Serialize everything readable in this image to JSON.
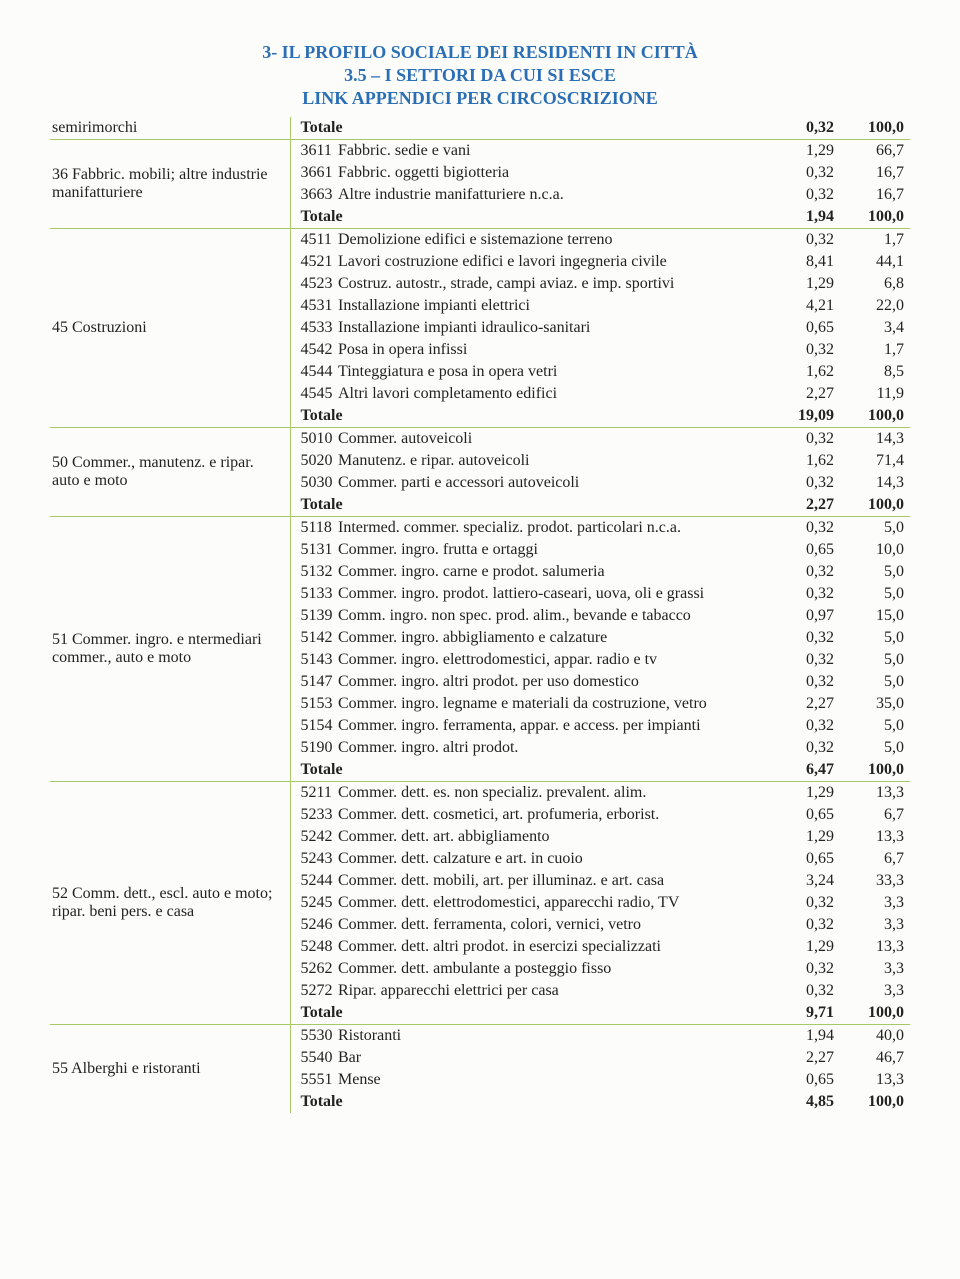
{
  "header": {
    "line1": "3- IL PROFILO SOCIALE DEI RESIDENTI IN CITTÀ",
    "line2": "3.5 – I SETTORI DA CUI SI ESCE",
    "line3": "LINK APPENDICI PER CIRCOSCRIZIONE"
  },
  "table": {
    "colors": {
      "border": "#a7c96a",
      "heading": "#2a6fb5"
    },
    "groups": [
      {
        "left": "semirimorchi",
        "rows": [
          {
            "type": "total",
            "label": "Totale",
            "v1": "0,32",
            "v2": "100,0"
          }
        ]
      },
      {
        "left": "36  Fabbric. mobili; altre industrie manifatturiere",
        "rows": [
          {
            "code": "3611",
            "desc": "Fabbric. sedie e vani",
            "v1": "1,29",
            "v2": "66,7"
          },
          {
            "code": "3661",
            "desc": "Fabbric. oggetti bigiotteria",
            "v1": "0,32",
            "v2": "16,7"
          },
          {
            "code": "3663",
            "desc": "Altre industrie manifatturiere n.c.a.",
            "v1": "0,32",
            "v2": "16,7"
          },
          {
            "type": "total",
            "label": "Totale",
            "v1": "1,94",
            "v2": "100,0"
          }
        ]
      },
      {
        "left": "45  Costruzioni",
        "rows": [
          {
            "code": "4511",
            "desc": "Demolizione edifici e sistemazione terreno",
            "v1": "0,32",
            "v2": "1,7"
          },
          {
            "code": "4521",
            "desc": "Lavori costruzione edifici e lavori ingegneria civile",
            "v1": "8,41",
            "v2": "44,1"
          },
          {
            "code": "4523",
            "desc": "Costruz. autostr., strade, campi aviaz. e imp. sportivi",
            "v1": "1,29",
            "v2": "6,8"
          },
          {
            "code": "4531",
            "desc": "Installazione impianti elettrici",
            "v1": "4,21",
            "v2": "22,0"
          },
          {
            "code": "4533",
            "desc": "Installazione impianti idraulico-sanitari",
            "v1": "0,65",
            "v2": "3,4"
          },
          {
            "code": "4542",
            "desc": "Posa in opera infissi",
            "v1": "0,32",
            "v2": "1,7"
          },
          {
            "code": "4544",
            "desc": "Tinteggiatura e posa in opera vetri",
            "v1": "1,62",
            "v2": "8,5"
          },
          {
            "code": "4545",
            "desc": "Altri lavori completamento edifici",
            "v1": "2,27",
            "v2": "11,9"
          },
          {
            "type": "total",
            "label": "Totale",
            "v1": "19,09",
            "v2": "100,0"
          }
        ]
      },
      {
        "left": "50  Commer., manutenz. e ripar. auto e moto",
        "rows": [
          {
            "code": "5010",
            "desc": "Commer. autoveicoli",
            "v1": "0,32",
            "v2": "14,3"
          },
          {
            "code": "5020",
            "desc": "Manutenz. e ripar. autoveicoli",
            "v1": "1,62",
            "v2": "71,4"
          },
          {
            "code": "5030",
            "desc": "Commer. parti e accessori autoveicoli",
            "v1": "0,32",
            "v2": "14,3"
          },
          {
            "type": "total",
            "label": "Totale",
            "v1": "2,27",
            "v2": "100,0"
          }
        ]
      },
      {
        "left": "51  Commer. ingro. e ntermediari commer., auto e moto",
        "rows": [
          {
            "code": "5118",
            "desc": "Intermed. commer. specializ. prodot. particolari n.c.a.",
            "v1": "0,32",
            "v2": "5,0"
          },
          {
            "code": "5131",
            "desc": "Commer. ingro. frutta e ortaggi",
            "v1": "0,65",
            "v2": "10,0"
          },
          {
            "code": "5132",
            "desc": "Commer. ingro. carne e prodot. salumeria",
            "v1": "0,32",
            "v2": "5,0"
          },
          {
            "code": "5133",
            "desc": "Commer. ingro. prodot. lattiero-caseari, uova, oli e grassi",
            "v1": "0,32",
            "v2": "5,0"
          },
          {
            "code": "5139",
            "desc": "Comm. ingro. non spec. prod. alim., bevande e tabacco",
            "v1": "0,97",
            "v2": "15,0"
          },
          {
            "code": "5142",
            "desc": "Commer. ingro. abbigliamento e calzature",
            "v1": "0,32",
            "v2": "5,0"
          },
          {
            "code": "5143",
            "desc": "Commer. ingro. elettrodomestici, appar. radio e tv",
            "v1": "0,32",
            "v2": "5,0"
          },
          {
            "code": "5147",
            "desc": "Commer. ingro. altri prodot. per uso domestico",
            "v1": "0,32",
            "v2": "5,0"
          },
          {
            "code": "5153",
            "desc": "Commer. ingro. legname e materiali da costruzione, vetro",
            "v1": "2,27",
            "v2": "35,0"
          },
          {
            "code": "5154",
            "desc": "Commer. ingro. ferramenta, appar. e access. per impianti",
            "v1": "0,32",
            "v2": "5,0"
          },
          {
            "code": "5190",
            "desc": "Commer. ingro. altri prodot.",
            "v1": "0,32",
            "v2": "5,0"
          },
          {
            "type": "total",
            "label": "Totale",
            "v1": "6,47",
            "v2": "100,0"
          }
        ]
      },
      {
        "left": "52  Comm. dett., escl. auto e moto; ripar. beni pers. e casa",
        "rows": [
          {
            "code": "5211",
            "desc": "Commer. dett. es. non specializ. prevalent. alim.",
            "v1": "1,29",
            "v2": "13,3"
          },
          {
            "code": "5233",
            "desc": "Commer. dett. cosmetici, art. profumeria, erborist.",
            "v1": "0,65",
            "v2": "6,7"
          },
          {
            "code": "5242",
            "desc": "Commer. dett. art. abbigliamento",
            "v1": "1,29",
            "v2": "13,3"
          },
          {
            "code": "5243",
            "desc": "Commer. dett. calzature e art. in cuoio",
            "v1": "0,65",
            "v2": "6,7"
          },
          {
            "code": "5244",
            "desc": "Commer. dett. mobili, art. per illuminaz. e art. casa",
            "v1": "3,24",
            "v2": "33,3"
          },
          {
            "code": "5245",
            "desc": "Commer. dett. elettrodomestici, apparecchi radio, TV",
            "v1": "0,32",
            "v2": "3,3"
          },
          {
            "code": "5246",
            "desc": "Commer. dett. ferramenta, colori, vernici, vetro",
            "v1": "0,32",
            "v2": "3,3"
          },
          {
            "code": "5248",
            "desc": "Commer. dett. altri prodot. in esercizi specializzati",
            "v1": "1,29",
            "v2": "13,3"
          },
          {
            "code": "5262",
            "desc": "Commer. dett. ambulante a posteggio fisso",
            "v1": "0,32",
            "v2": "3,3"
          },
          {
            "code": "5272",
            "desc": "Ripar. apparecchi elettrici per casa",
            "v1": "0,32",
            "v2": "3,3"
          },
          {
            "type": "total",
            "label": "Totale",
            "v1": "9,71",
            "v2": "100,0"
          }
        ]
      },
      {
        "left": "55  Alberghi e ristoranti",
        "rows": [
          {
            "code": "5530",
            "desc": "Ristoranti",
            "v1": "1,94",
            "v2": "40,0"
          },
          {
            "code": "5540",
            "desc": "Bar",
            "v1": "2,27",
            "v2": "46,7"
          },
          {
            "code": "5551",
            "desc": "Mense",
            "v1": "0,65",
            "v2": "13,3"
          },
          {
            "type": "total",
            "label": "Totale",
            "v1": "4,85",
            "v2": "100,0"
          }
        ]
      }
    ]
  }
}
